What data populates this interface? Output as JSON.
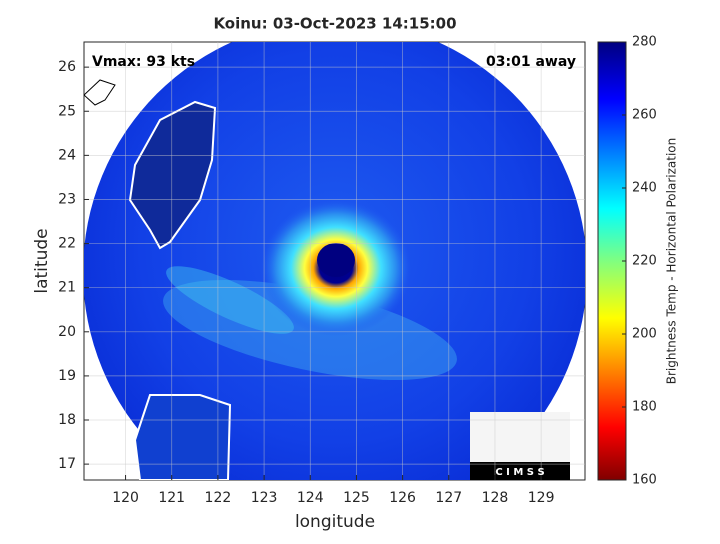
{
  "chart_data": {
    "type": "map",
    "title": "Koinu: 03-Oct-2023 14:15:00",
    "xlabel": "longitude",
    "ylabel": "latitude",
    "annotations": [
      "Vmax: 93 kts",
      "03:01 away"
    ],
    "logo": "C I M S S",
    "xlim": [
      119.1,
      129.95
    ],
    "xticks": [
      120,
      121,
      122,
      123,
      124,
      125,
      126,
      127,
      128,
      129
    ],
    "ylim": [
      16.64,
      26.57
    ],
    "yticks": [
      17,
      18,
      19,
      20,
      21,
      22,
      23,
      24,
      25,
      26
    ],
    "grid": true,
    "colorbar": {
      "label": "Brightness Temp - Horizontal Polarization",
      "lim": [
        160,
        280
      ],
      "ticks": [
        160,
        180,
        200,
        220,
        240,
        260,
        280
      ]
    }
  }
}
